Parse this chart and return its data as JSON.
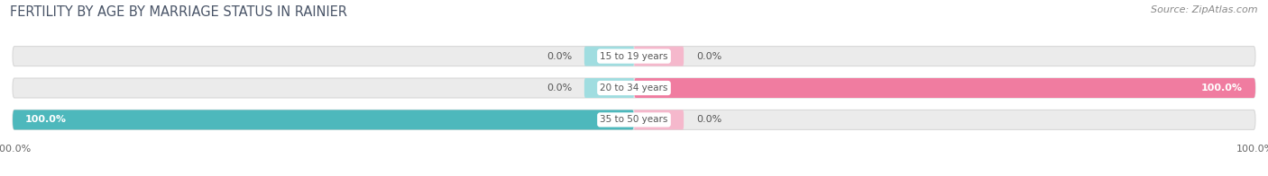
{
  "title": "FERTILITY BY AGE BY MARRIAGE STATUS IN RAINIER",
  "source": "Source: ZipAtlas.com",
  "categories": [
    "15 to 19 years",
    "20 to 34 years",
    "35 to 50 years"
  ],
  "married_values": [
    0.0,
    0.0,
    100.0
  ],
  "unmarried_values": [
    0.0,
    100.0,
    0.0
  ],
  "married_color": "#4db8bc",
  "unmarried_color": "#f07ca0",
  "unmarried_small_color": "#f5b8cc",
  "married_small_color": "#a0dde0",
  "bg_bar_color": "#ebebeb",
  "bg_bar_edge": "#d8d8d8",
  "bar_height": 0.62,
  "figsize": [
    14.06,
    1.96
  ],
  "dpi": 100,
  "title_fontsize": 10.5,
  "source_fontsize": 8,
  "label_fontsize": 8,
  "category_fontsize": 7.5,
  "legend_fontsize": 8,
  "title_color": "#4a5568",
  "source_color": "#888888",
  "label_color": "#555555",
  "category_label_color": "#555555"
}
